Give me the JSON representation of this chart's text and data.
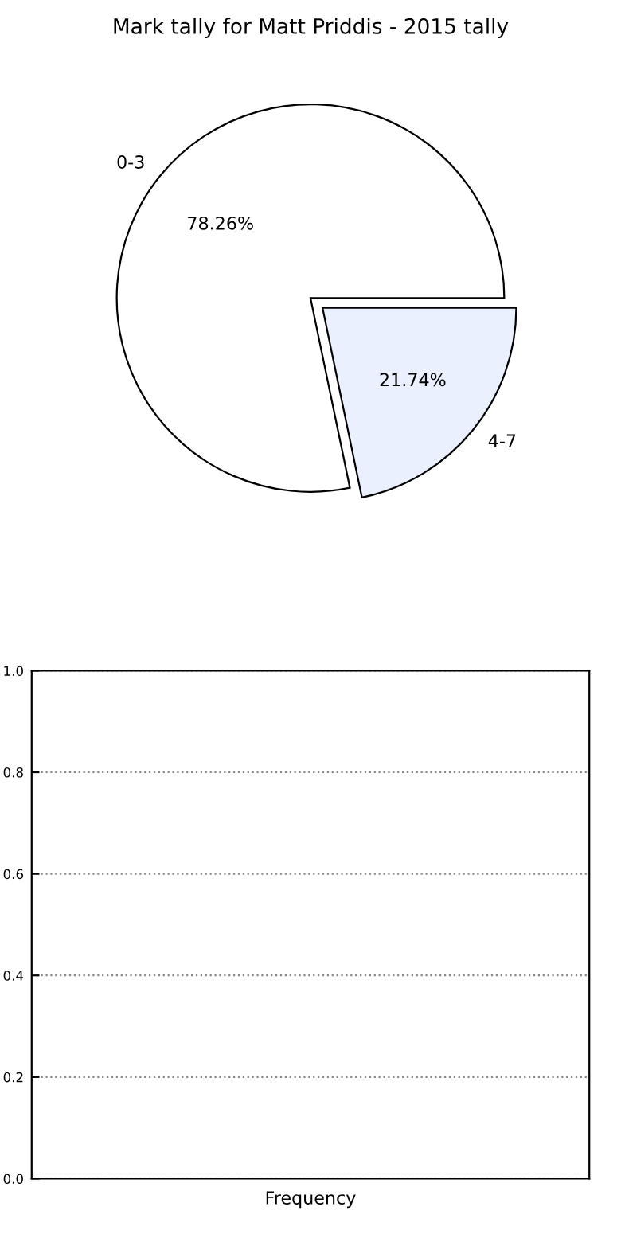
{
  "chart_data": [
    {
      "type": "pie",
      "title": "Mark tally for Matt Priddis - 2015 tally",
      "categories": [
        "0-3",
        "4-7"
      ],
      "values": [
        78.26,
        21.74
      ],
      "colors": [
        "#ffffff",
        "#eaf0fe"
      ],
      "value_labels": [
        "78.26%",
        "21.74%"
      ]
    },
    {
      "type": "bar",
      "xlabel": "Frequency",
      "categories": [
        null
      ],
      "values": [
        null
      ],
      "ylim": [
        0,
        1.0
      ],
      "yticks": [
        {
          "value": 0,
          "label": "0.0"
        },
        0.2,
        0.4,
        0.6,
        0.8,
        {
          "value": 1.0,
          "label": "1.0"
        }
      ],
      "grid": "y",
      "line_style": "dotted"
    }
  ]
}
